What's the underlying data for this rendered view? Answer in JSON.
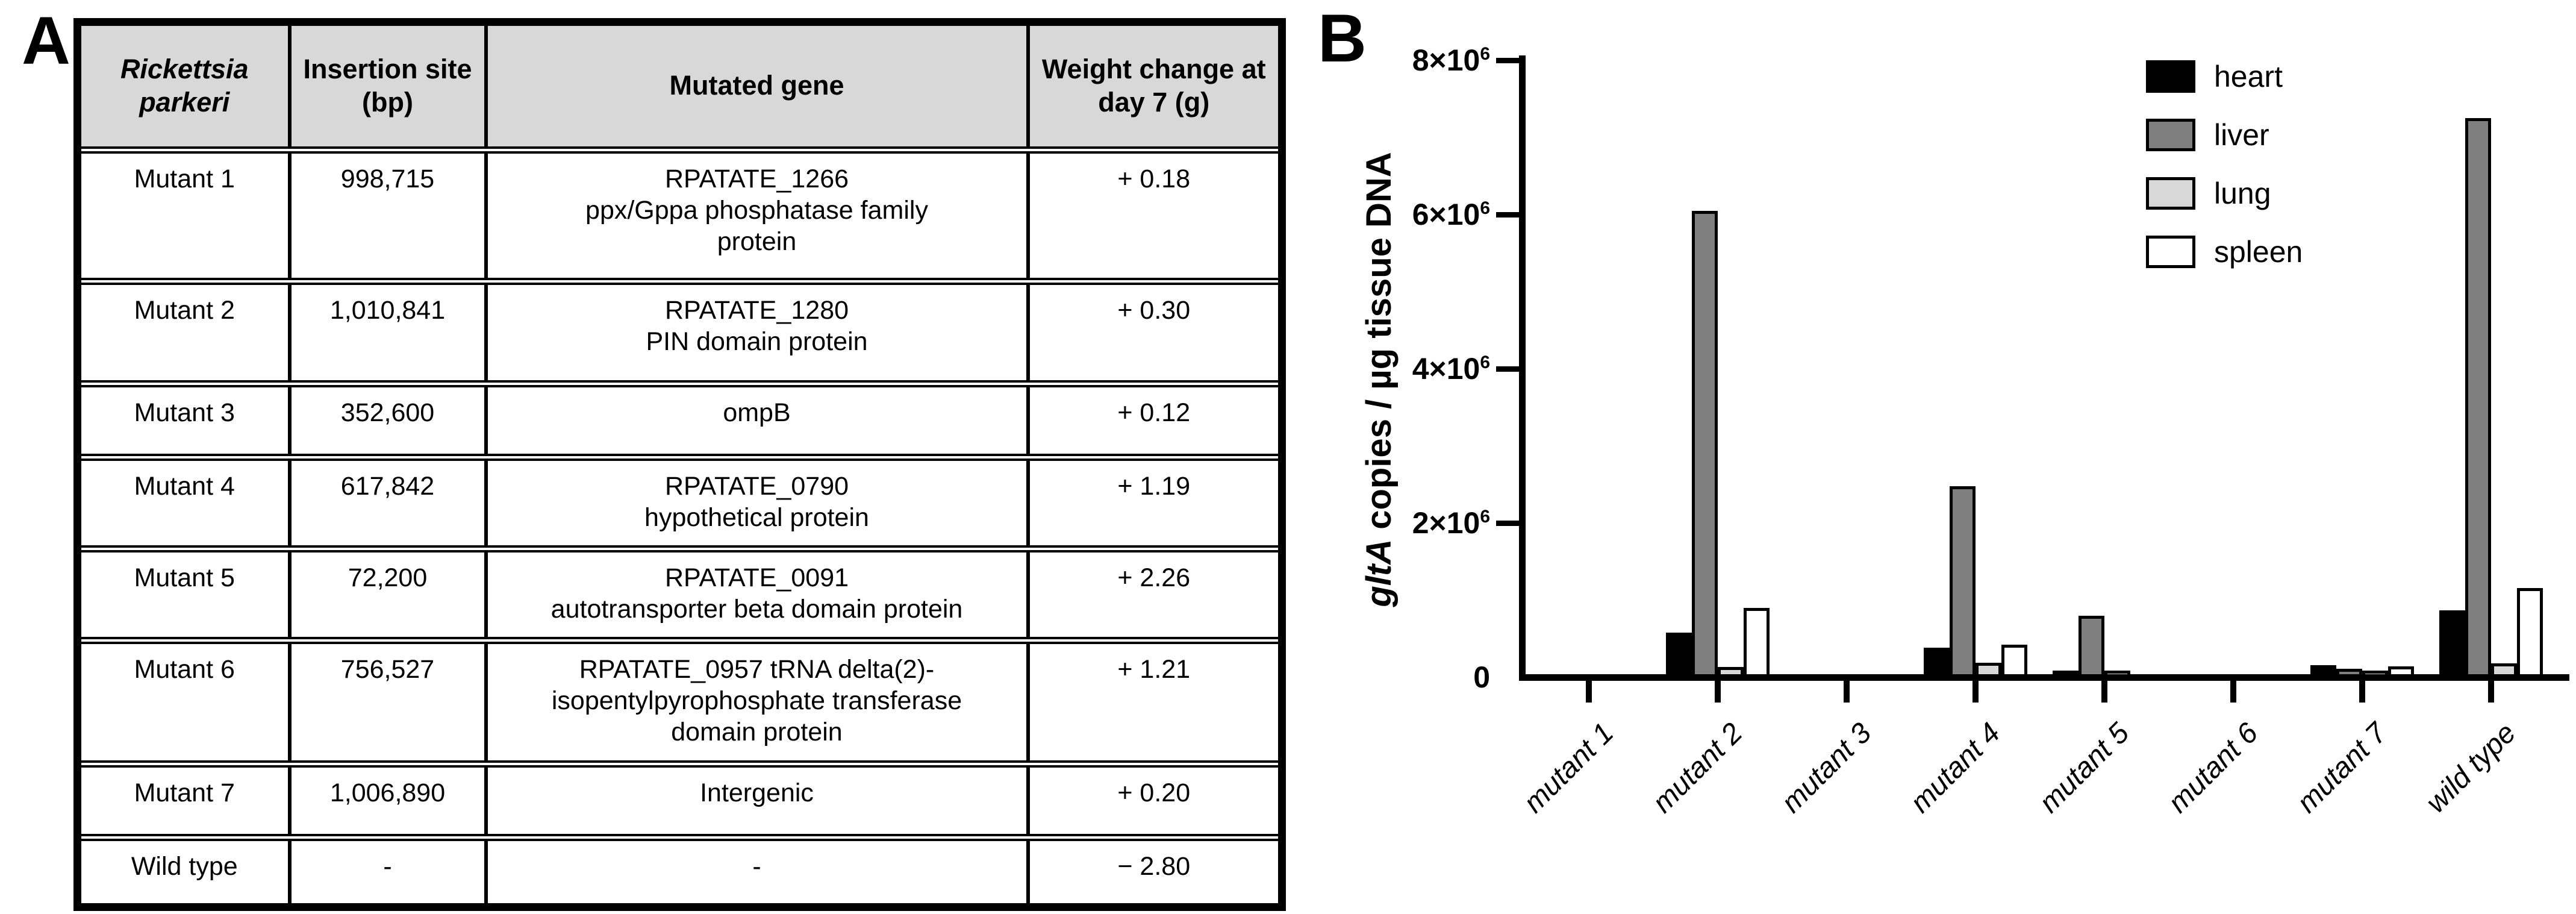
{
  "panel_a": {
    "label": "A"
  },
  "panel_b": {
    "label": "B"
  },
  "table": {
    "header_bg": "#d8d8d8",
    "headers": [
      "Rickettsia parkeri",
      "Insertion site (bp)",
      "Mutated gene",
      "Weight change at day 7 (g)"
    ],
    "rows": [
      {
        "strain": "Mutant 1",
        "insertion_site": "998,715",
        "gene_lines": [
          "RPATATE_1266",
          "ppx/Gppa phosphatase family",
          "protein"
        ],
        "weight_change": "+ 0.18"
      },
      {
        "strain": "Mutant 2",
        "insertion_site": "1,010,841",
        "gene_lines": [
          "RPATATE_1280",
          "PIN domain protein"
        ],
        "weight_change": "+ 0.30"
      },
      {
        "strain": "Mutant 3",
        "insertion_site": "352,600",
        "gene_lines": [
          "ompB"
        ],
        "weight_change": "+ 0.12"
      },
      {
        "strain": "Mutant 4",
        "insertion_site": "617,842",
        "gene_lines": [
          "RPATATE_0790",
          "hypothetical protein"
        ],
        "weight_change": "+ 1.19"
      },
      {
        "strain": "Mutant 5",
        "insertion_site": "72,200",
        "gene_lines": [
          "RPATATE_0091",
          "autotransporter beta domain protein"
        ],
        "weight_change": "+ 2.26"
      },
      {
        "strain": "Mutant 6",
        "insertion_site": "756,527",
        "gene_lines": [
          "RPATATE_0957 tRNA delta(2)-",
          "isopentylpyrophosphate transferase",
          "domain protein"
        ],
        "weight_change": "+ 1.21"
      },
      {
        "strain": "Mutant 7",
        "insertion_site": "1,006,890",
        "gene_lines": [
          "Intergenic"
        ],
        "weight_change": "+ 0.20"
      },
      {
        "strain": "Wild type",
        "insertion_site": "-",
        "gene_lines": [
          "-"
        ],
        "weight_change": "− 2.80"
      }
    ]
  },
  "chart_data": {
    "type": "bar",
    "title": "",
    "xlabel": "",
    "ylabel_italic": "gltA",
    "ylabel_rest": " copies / µg tissue DNA",
    "ylim": [
      0,
      8000000
    ],
    "grid": false,
    "legend_position": "top-right",
    "yticks": [
      {
        "value": 0,
        "base": "0",
        "exp": ""
      },
      {
        "value": 2000000,
        "base": "2×10",
        "exp": "6"
      },
      {
        "value": 4000000,
        "base": "4×10",
        "exp": "6"
      },
      {
        "value": 6000000,
        "base": "6×10",
        "exp": "6"
      },
      {
        "value": 8000000,
        "base": "8×10",
        "exp": "6"
      }
    ],
    "categories": [
      "mutant 1",
      "mutant 2",
      "mutant 3",
      "mutant 4",
      "mutant 5",
      "mutant 6",
      "mutant 7",
      "wild type"
    ],
    "series": [
      {
        "name": "heart",
        "color": "#000000",
        "values": [
          0,
          580000,
          0,
          380000,
          80000,
          0,
          160000,
          870000
        ]
      },
      {
        "name": "liver",
        "color": "#7f7f7f",
        "values": [
          0,
          6050000,
          0,
          2480000,
          800000,
          0,
          110000,
          7250000
        ]
      },
      {
        "name": "lung",
        "color": "#d8d8d8",
        "values": [
          0,
          130000,
          0,
          190000,
          50000,
          0,
          50000,
          180000
        ]
      },
      {
        "name": "spleen",
        "color": "#ffffff",
        "values": [
          0,
          900000,
          0,
          420000,
          0,
          0,
          140000,
          1160000
        ]
      }
    ]
  }
}
